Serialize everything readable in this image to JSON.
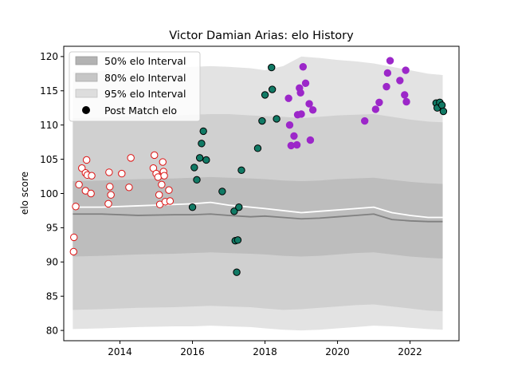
{
  "chart_data": {
    "type": "scatter",
    "title": "Victor Damian Arias: elo History",
    "xlabel": "",
    "ylabel": "elo score",
    "xlim": [
      2012.45,
      2023.35
    ],
    "ylim": [
      78.5,
      121.5
    ],
    "xticks": [
      2014,
      2016,
      2018,
      2020,
      2022
    ],
    "xtick_labels": [
      "2014",
      "2016",
      "2018",
      "2020",
      "2022"
    ],
    "yticks": [
      80,
      85,
      90,
      95,
      100,
      105,
      110,
      115,
      120
    ],
    "ytick_labels": [
      "80",
      "85",
      "90",
      "95",
      "100",
      "105",
      "110",
      "115",
      "120"
    ],
    "legend": {
      "position": "top-left",
      "entries": [
        "50% elo Interval",
        "80% elo Interval",
        "95% elo Interval",
        "Post Match elo"
      ]
    },
    "bands": {
      "x": [
        2012.7,
        2013.5,
        2014.5,
        2015.5,
        2016.0,
        2016.5,
        2017.0,
        2017.6,
        2018.0,
        2018.5,
        2019.0,
        2019.5,
        2020.0,
        2020.5,
        2021.0,
        2021.5,
        2022.0,
        2022.5,
        2022.9
      ],
      "p95_upper": [
        117.8,
        117.9,
        118.1,
        118.3,
        118.5,
        118.6,
        118.5,
        118.3,
        118.0,
        118.6,
        120.0,
        119.8,
        119.5,
        119.3,
        119.0,
        118.5,
        118.0,
        117.5,
        117.3
      ],
      "p95_lower": [
        80.2,
        80.3,
        80.5,
        80.6,
        80.6,
        80.7,
        80.6,
        80.5,
        80.3,
        80.1,
        80.0,
        80.1,
        80.3,
        80.5,
        80.7,
        80.6,
        80.4,
        80.2,
        80.1
      ],
      "p80_upper": [
        111.0,
        111.1,
        111.3,
        111.4,
        111.5,
        111.6,
        111.6,
        111.4,
        111.3,
        111.2,
        111.0,
        111.2,
        111.4,
        111.5,
        111.6,
        111.2,
        110.8,
        110.5,
        110.4
      ],
      "p80_lower": [
        83.0,
        83.1,
        83.3,
        83.4,
        83.5,
        83.6,
        83.5,
        83.4,
        83.2,
        83.0,
        83.1,
        83.3,
        83.5,
        83.7,
        83.8,
        83.5,
        83.2,
        82.9,
        82.8
      ],
      "p50_upper": [
        101.8,
        101.9,
        102.1,
        102.2,
        102.3,
        102.4,
        102.3,
        102.2,
        102.1,
        101.9,
        101.8,
        101.9,
        102.1,
        102.2,
        102.3,
        102.0,
        101.7,
        101.5,
        101.4
      ],
      "p50_lower": [
        90.8,
        90.9,
        91.1,
        91.2,
        91.3,
        91.4,
        91.3,
        91.2,
        91.1,
        90.9,
        90.8,
        90.9,
        91.1,
        91.3,
        91.4,
        91.1,
        90.8,
        90.6,
        90.5
      ],
      "mean": [
        98.0,
        98.0,
        98.2,
        98.4,
        98.5,
        98.7,
        98.3,
        98.0,
        97.8,
        97.5,
        97.2,
        97.4,
        97.6,
        97.8,
        98.0,
        97.2,
        96.8,
        96.5,
        96.5
      ],
      "median": [
        97.0,
        97.0,
        96.8,
        96.9,
        96.9,
        97.0,
        96.8,
        96.6,
        96.7,
        96.5,
        96.3,
        96.4,
        96.6,
        96.8,
        97.0,
        96.2,
        96.0,
        95.9,
        95.9
      ]
    },
    "series": [
      {
        "color_fill": "#ffffff",
        "color_edge": "#dd1111",
        "points": [
          [
            2012.73,
            93.6
          ],
          [
            2012.72,
            91.5
          ],
          [
            2012.78,
            98.1
          ],
          [
            2012.87,
            101.3
          ],
          [
            2012.95,
            103.7
          ],
          [
            2013.05,
            103.0
          ],
          [
            2013.08,
            104.9
          ],
          [
            2013.1,
            102.7
          ],
          [
            2013.05,
            100.4
          ],
          [
            2013.2,
            100.0
          ],
          [
            2013.22,
            102.6
          ],
          [
            2013.7,
            103.1
          ],
          [
            2013.72,
            101.0
          ],
          [
            2013.75,
            99.8
          ],
          [
            2013.68,
            98.5
          ],
          [
            2014.05,
            102.9
          ],
          [
            2014.25,
            100.9
          ],
          [
            2014.3,
            105.2
          ],
          [
            2014.92,
            103.7
          ],
          [
            2014.95,
            105.6
          ],
          [
            2015.0,
            102.9
          ],
          [
            2015.05,
            102.4
          ],
          [
            2015.08,
            99.8
          ],
          [
            2015.1,
            98.4
          ],
          [
            2015.15,
            101.3
          ],
          [
            2015.18,
            104.6
          ],
          [
            2015.2,
            103.2
          ],
          [
            2015.22,
            102.6
          ],
          [
            2015.25,
            98.8
          ],
          [
            2015.35,
            100.5
          ],
          [
            2015.38,
            98.9
          ]
        ]
      },
      {
        "color_fill": "#117a65",
        "color_edge": "#000000",
        "points": [
          [
            2016.0,
            98.0
          ],
          [
            2016.05,
            103.8
          ],
          [
            2016.12,
            102.0
          ],
          [
            2016.2,
            105.2
          ],
          [
            2016.25,
            107.3
          ],
          [
            2016.3,
            109.1
          ],
          [
            2016.38,
            104.9
          ],
          [
            2016.82,
            100.3
          ],
          [
            2017.15,
            97.4
          ],
          [
            2017.18,
            93.1
          ],
          [
            2017.22,
            88.5
          ],
          [
            2017.25,
            93.2
          ],
          [
            2017.28,
            98.0
          ],
          [
            2017.35,
            103.4
          ],
          [
            2017.8,
            106.6
          ],
          [
            2017.92,
            110.6
          ],
          [
            2018.0,
            114.4
          ],
          [
            2018.18,
            118.4
          ],
          [
            2018.2,
            115.2
          ],
          [
            2018.32,
            110.9
          ],
          [
            2022.72,
            113.2
          ],
          [
            2022.75,
            112.5
          ],
          [
            2022.82,
            113.3
          ],
          [
            2022.88,
            112.9
          ],
          [
            2022.92,
            112.0
          ]
        ]
      },
      {
        "color_fill": "#9c27c9",
        "color_edge": "#9c27c9",
        "points": [
          [
            2018.65,
            113.9
          ],
          [
            2018.68,
            110.0
          ],
          [
            2018.72,
            107.0
          ],
          [
            2018.8,
            108.4
          ],
          [
            2018.88,
            107.1
          ],
          [
            2018.9,
            111.5
          ],
          [
            2018.95,
            115.4
          ],
          [
            2019.0,
            111.6
          ],
          [
            2018.98,
            114.7
          ],
          [
            2019.05,
            118.5
          ],
          [
            2019.12,
            116.1
          ],
          [
            2019.22,
            113.1
          ],
          [
            2019.25,
            107.8
          ],
          [
            2019.32,
            112.2
          ],
          [
            2020.75,
            110.6
          ],
          [
            2021.05,
            112.3
          ],
          [
            2021.15,
            113.3
          ],
          [
            2021.35,
            115.6
          ],
          [
            2021.38,
            117.6
          ],
          [
            2021.45,
            119.4
          ],
          [
            2021.72,
            116.5
          ],
          [
            2021.85,
            114.4
          ],
          [
            2021.88,
            118.0
          ],
          [
            2021.9,
            113.4
          ]
        ]
      }
    ]
  }
}
